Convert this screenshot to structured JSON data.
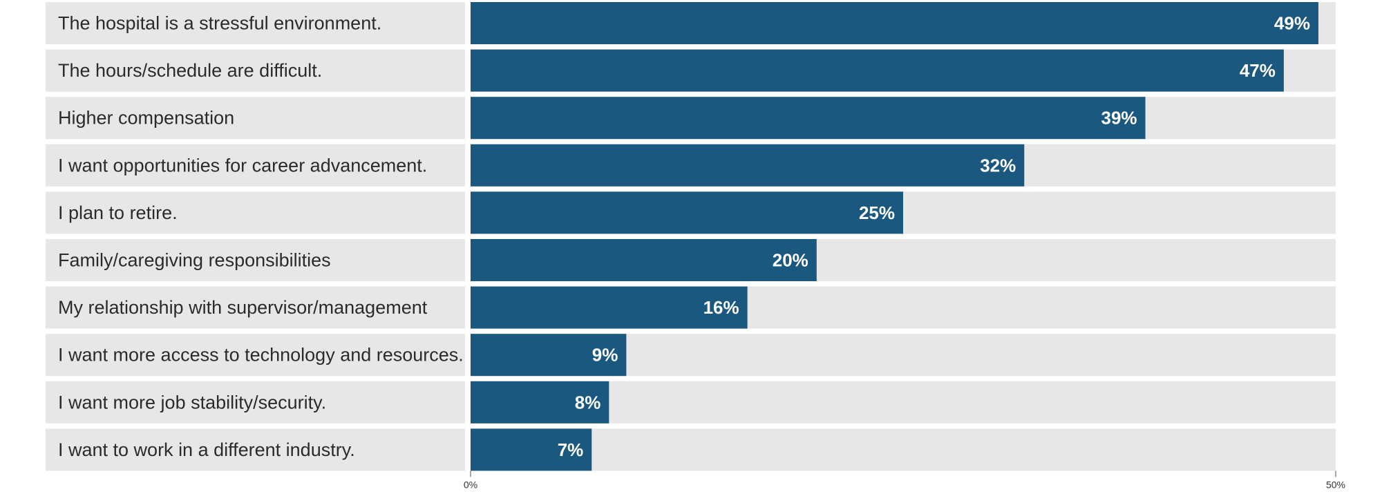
{
  "chart_data": {
    "type": "bar",
    "orientation": "horizontal",
    "categories": [
      "The hospital is a stressful environment.",
      "The hours/schedule are difficult.",
      "Higher compensation",
      "I want opportunities for career advancement.",
      "I plan to retire.",
      "Family/caregiving responsibilities",
      "My relationship with supervisor/management",
      "I want more access to technology and resources.",
      "I want more job stability/security.",
      "I want to work in a different industry."
    ],
    "values": [
      49,
      47,
      39,
      32,
      25,
      20,
      16,
      9,
      8,
      7
    ],
    "value_labels": [
      "49%",
      "47%",
      "39%",
      "32%",
      "25%",
      "20%",
      "16%",
      "9%",
      "8%",
      "7%"
    ],
    "xlim": [
      0,
      50
    ],
    "x_ticks": [
      0,
      50
    ],
    "x_tick_labels": [
      "0%",
      "50%"
    ],
    "title": "",
    "xlabel": "",
    "ylabel": "",
    "grid": false,
    "legend": "none",
    "colors": {
      "bar": "#1b587f",
      "track": "#e7e7e8",
      "label_background": "#e7e7e8",
      "value_text": "#ffffff",
      "category_text": "#2b2b2b"
    }
  }
}
